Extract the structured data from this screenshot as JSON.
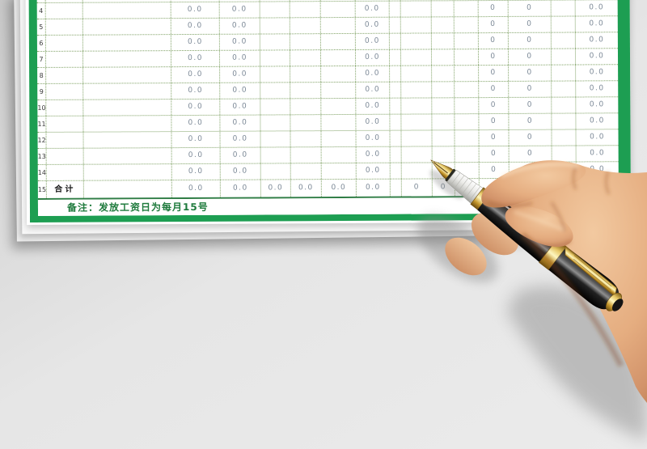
{
  "table": {
    "accent_green": "#1d9e52",
    "grid_line_green": "#7fa164",
    "value_text_color": "#7b8896",
    "note": "备注：发放工资日为每月15号",
    "total_label": "合计",
    "rows": [
      {
        "num": "",
        "cells": [
          "",
          "",
          "",
          "",
          "",
          "",
          "",
          "",
          "",
          "",
          "",
          "",
          "",
          "",
          "",
          ""
        ]
      },
      {
        "num": "4",
        "cells": [
          "",
          "",
          "0.0",
          "0.0",
          "",
          "",
          "",
          "0.0",
          "",
          "",
          "",
          "",
          "0",
          "0",
          "",
          "0.0"
        ]
      },
      {
        "num": "5",
        "cells": [
          "",
          "",
          "0.0",
          "0.0",
          "",
          "",
          "",
          "0.0",
          "",
          "",
          "",
          "",
          "0",
          "0",
          "",
          "0.0"
        ]
      },
      {
        "num": "6",
        "cells": [
          "",
          "",
          "0.0",
          "0.0",
          "",
          "",
          "",
          "0.0",
          "",
          "",
          "",
          "",
          "0",
          "0",
          "",
          "0.0"
        ]
      },
      {
        "num": "7",
        "cells": [
          "",
          "",
          "0.0",
          "0.0",
          "",
          "",
          "",
          "0.0",
          "",
          "",
          "",
          "",
          "0",
          "0",
          "",
          "0.0"
        ]
      },
      {
        "num": "8",
        "cells": [
          "",
          "",
          "0.0",
          "0.0",
          "",
          "",
          "",
          "0.0",
          "",
          "",
          "",
          "",
          "0",
          "0",
          "",
          "0.0"
        ]
      },
      {
        "num": "9",
        "cells": [
          "",
          "",
          "0.0",
          "0.0",
          "",
          "",
          "",
          "0.0",
          "",
          "",
          "",
          "",
          "0",
          "0",
          "",
          "0.0"
        ]
      },
      {
        "num": "10",
        "cells": [
          "",
          "",
          "0.0",
          "0.0",
          "",
          "",
          "",
          "0.0",
          "",
          "",
          "",
          "",
          "0",
          "0",
          "",
          "0.0"
        ]
      },
      {
        "num": "11",
        "cells": [
          "",
          "",
          "0.0",
          "0.0",
          "",
          "",
          "",
          "0.0",
          "",
          "",
          "",
          "",
          "0",
          "0",
          "",
          "0.0"
        ]
      },
      {
        "num": "12",
        "cells": [
          "",
          "",
          "0.0",
          "0.0",
          "",
          "",
          "",
          "0.0",
          "",
          "",
          "",
          "",
          "0",
          "0",
          "",
          "0.0"
        ]
      },
      {
        "num": "13",
        "cells": [
          "",
          "",
          "0.0",
          "0.0",
          "",
          "",
          "",
          "0.0",
          "",
          "",
          "",
          "",
          "0",
          "0",
          "",
          "0.0"
        ]
      },
      {
        "num": "14",
        "cells": [
          "",
          "",
          "0.0",
          "0.0",
          "",
          "",
          "",
          "0.0",
          "",
          "",
          "",
          "",
          "0",
          "0",
          "",
          "0.0"
        ]
      },
      {
        "num": "15",
        "cells": [
          "合计",
          "",
          "0.0",
          "0.0",
          "0.0",
          "0.0",
          "0.0",
          "0.0",
          "",
          "0",
          "0",
          "",
          "",
          "",
          "",
          ""
        ]
      }
    ]
  }
}
